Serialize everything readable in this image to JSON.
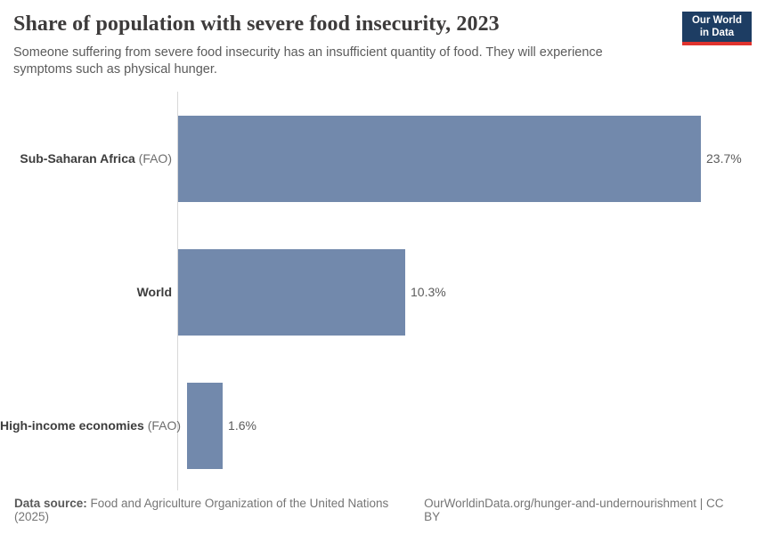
{
  "header": {
    "title": "Share of population with severe food insecurity, 2023",
    "subtitle": "Someone suffering from severe food insecurity has an insufficient quantity of food. They will experience symptoms such as physical hunger.",
    "logo": {
      "line1": "Our World",
      "line2": "in Data"
    }
  },
  "chart_data": {
    "type": "bar",
    "orientation": "horizontal",
    "title": "Share of population with severe food insecurity, 2023",
    "categories": [
      "Sub-Saharan Africa (FAO)",
      "World",
      "High-income economies (FAO)"
    ],
    "values": [
      23.7,
      10.3,
      1.6
    ],
    "value_labels": [
      "23.7%",
      "10.3%",
      "1.6%"
    ],
    "unit": "%",
    "xlim": [
      0,
      23.7
    ],
    "grid": false,
    "legend": false,
    "bar_color": "#7289ac"
  },
  "rows": [
    {
      "name": "Sub-Saharan Africa",
      "suffix": "(FAO)",
      "value_label": "23.7%"
    },
    {
      "name": "World",
      "suffix": "",
      "value_label": "10.3%"
    },
    {
      "name": "High-income economies",
      "suffix": "(FAO)",
      "value_label": "1.6%"
    }
  ],
  "footer": {
    "source_label": "Data source:",
    "source_text": " Food and Agriculture Organization of the United Nations (2025)",
    "link_text": "OurWorldinData.org/hunger-and-undernourishment | CC BY"
  },
  "colors": {
    "bar": "#7289ac",
    "logo_navy": "#1d3d63",
    "logo_red": "#e0332e",
    "axis_line": "#d9d9d9"
  }
}
